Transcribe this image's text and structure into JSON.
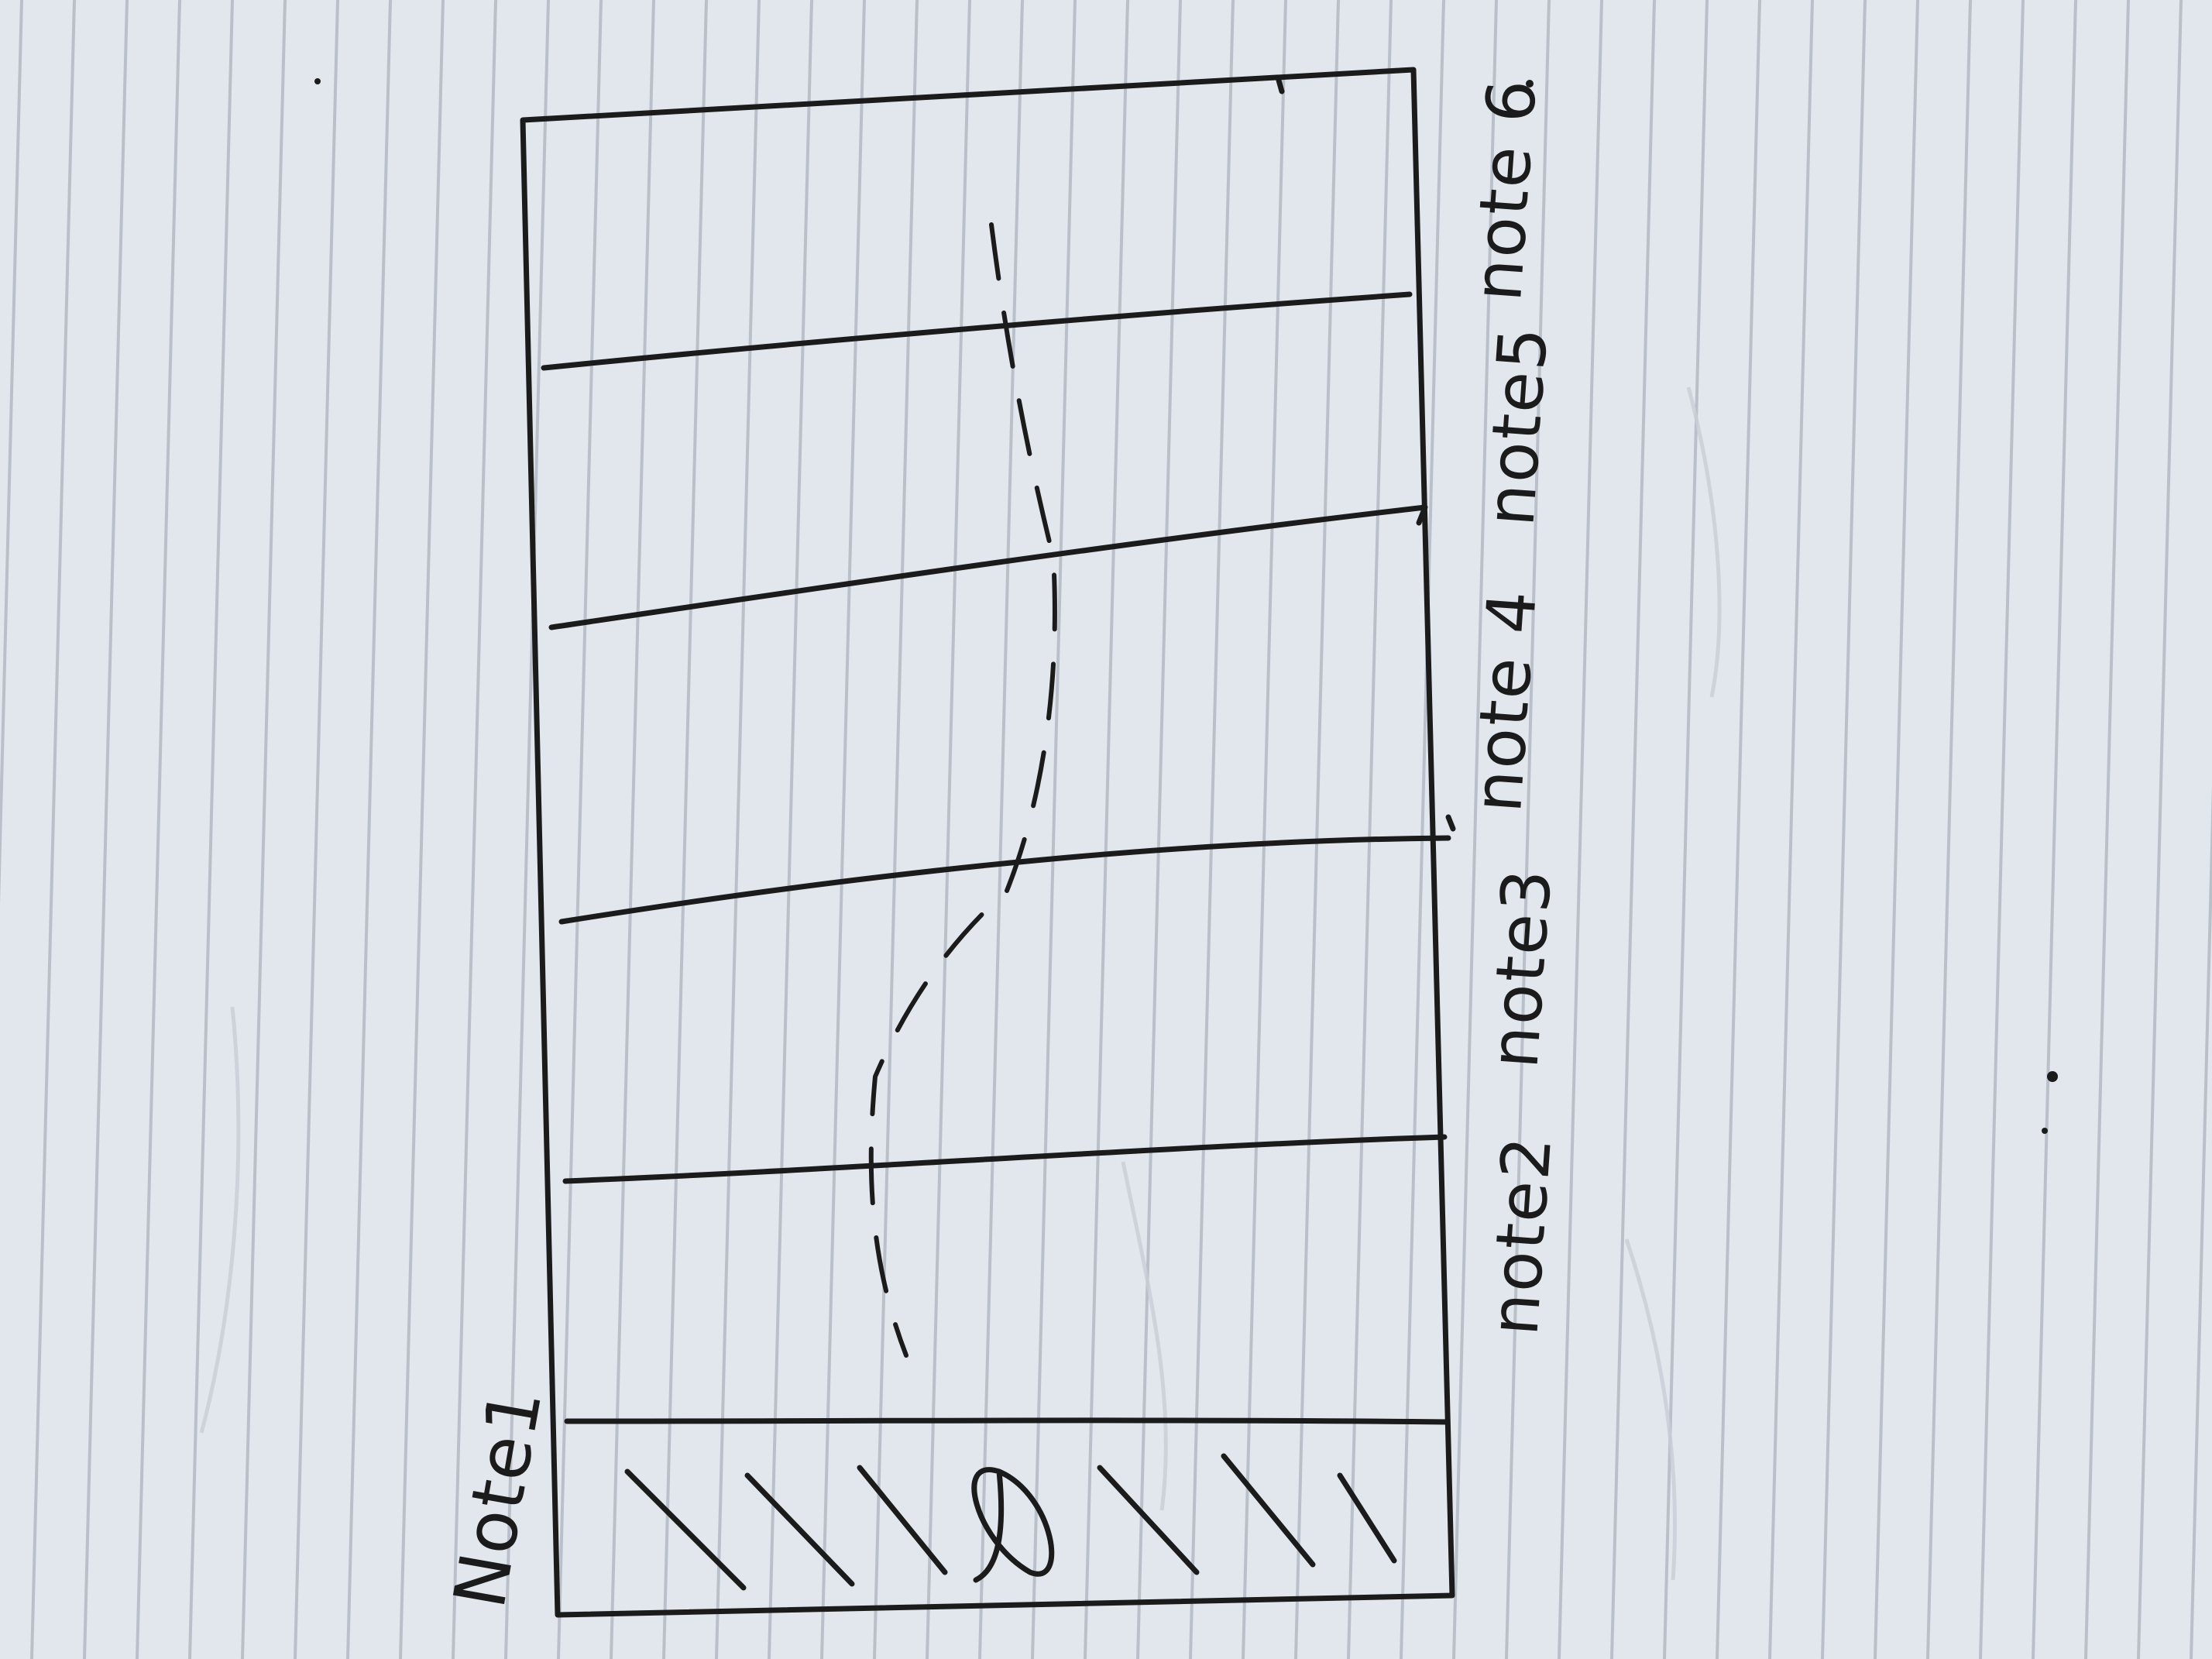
{
  "sketch": {
    "paper_color": "#e2e7ee",
    "rule_color": "#b9c0c9",
    "ink_color": "#1b1b1b",
    "notes": [
      {
        "label": "Note1"
      },
      {
        "label": "note2"
      },
      {
        "label": "note3"
      },
      {
        "label": "note 4"
      },
      {
        "label": "note5"
      },
      {
        "label": "note 6"
      }
    ]
  }
}
